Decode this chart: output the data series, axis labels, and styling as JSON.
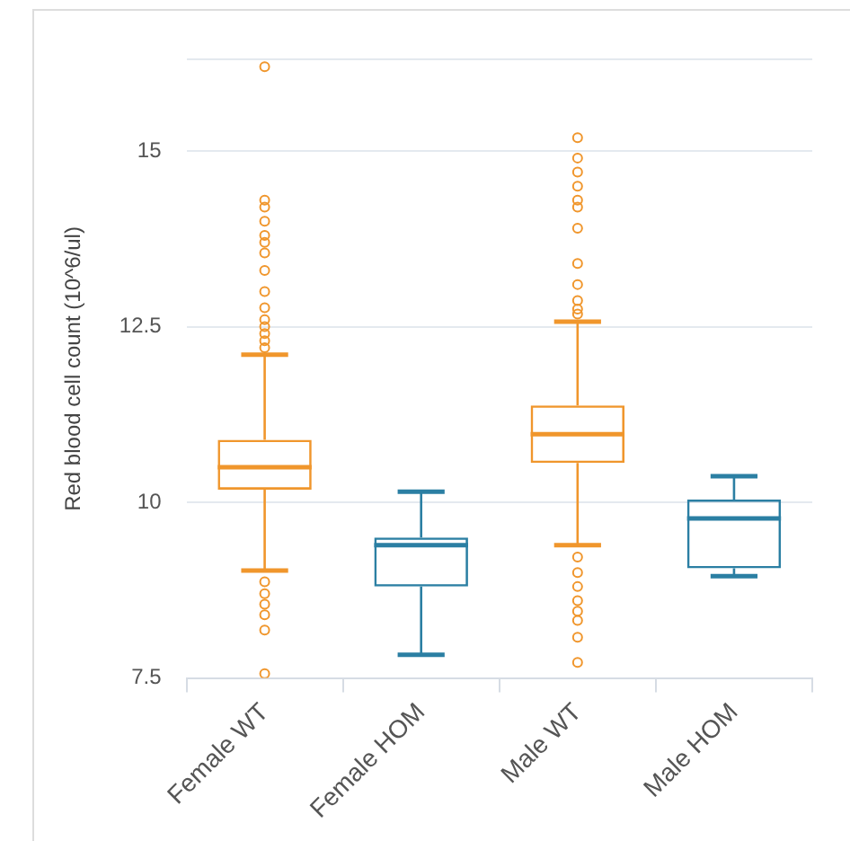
{
  "chart_data": {
    "type": "box",
    "ylabel": "Red blood cell count (10^6/ul)",
    "categories": [
      "Female WT",
      "Female HOM",
      "Male WT",
      "Male HOM"
    ],
    "colors": [
      "#f0962c",
      "#2b7fa3",
      "#f0962c",
      "#2b7fa3"
    ],
    "boxes": [
      {
        "low": 9.03,
        "q1": 10.18,
        "median": 10.5,
        "q3": 10.89,
        "high": 12.1,
        "outliers": [
          16.2,
          14.3,
          14.2,
          14.0,
          13.8,
          13.7,
          13.55,
          13.3,
          13.0,
          12.77,
          12.6,
          12.5,
          12.4,
          12.3,
          12.2,
          8.87,
          8.7,
          8.55,
          8.4,
          8.18,
          7.56
        ]
      },
      {
        "low": 7.83,
        "q1": 8.8,
        "median": 9.39,
        "q3": 9.5,
        "high": 10.15
      },
      {
        "low": 9.39,
        "q1": 10.56,
        "median": 10.97,
        "q3": 11.38,
        "high": 12.57,
        "outliers": [
          15.19,
          14.9,
          14.7,
          14.5,
          14.3,
          14.2,
          13.9,
          13.4,
          13.1,
          12.87,
          12.75,
          12.68,
          9.22,
          9.0,
          8.8,
          8.6,
          8.45,
          8.32,
          8.08,
          7.72
        ]
      },
      {
        "low": 8.95,
        "q1": 9.06,
        "median": 9.77,
        "q3": 10.04,
        "high": 10.37
      }
    ],
    "ylim": [
      7.5,
      16.3
    ],
    "yticks": [
      7.5,
      10,
      12.5,
      15,
      {
        "value": 16.3,
        "label": null
      }
    ],
    "grid": "y",
    "legend": false
  }
}
